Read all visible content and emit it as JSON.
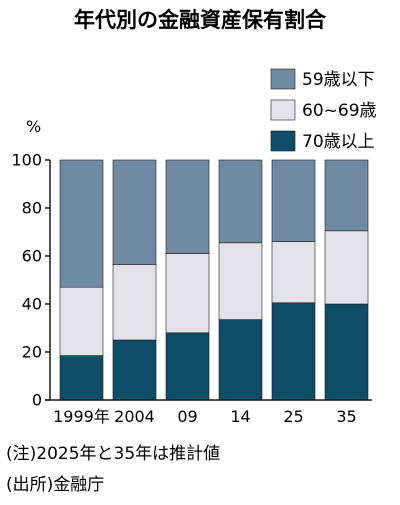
{
  "chart_data": {
    "type": "bar",
    "stacked": true,
    "percent": true,
    "title": "年代別の金融資産保有割合",
    "ylabel": "%",
    "ylim": [
      0,
      100
    ],
    "yticks": [
      0,
      20,
      40,
      60,
      80,
      100
    ],
    "categories": [
      "1999年",
      "2004",
      "09",
      "14",
      "25",
      "35"
    ],
    "series": [
      {
        "name": "70歳以上",
        "color": "#0e4d68",
        "values": [
          18.5,
          25,
          28,
          33.5,
          40.5,
          40
        ]
      },
      {
        "name": "60~69歳",
        "color": "#e2e2e8",
        "values": [
          28.5,
          31.5,
          33,
          32,
          25.5,
          30.5
        ]
      },
      {
        "name": "59歳以下",
        "color": "#6f8aa3",
        "values": [
          53,
          43.5,
          39,
          34.5,
          34,
          29.5
        ]
      }
    ],
    "legend": [
      "59歳以下",
      "60~69歳",
      "70歳以上"
    ],
    "legend_position": "top-right",
    "grid": false
  },
  "notes": [
    "(注)2025年と35年は推計値",
    "(出所)金融庁"
  ]
}
